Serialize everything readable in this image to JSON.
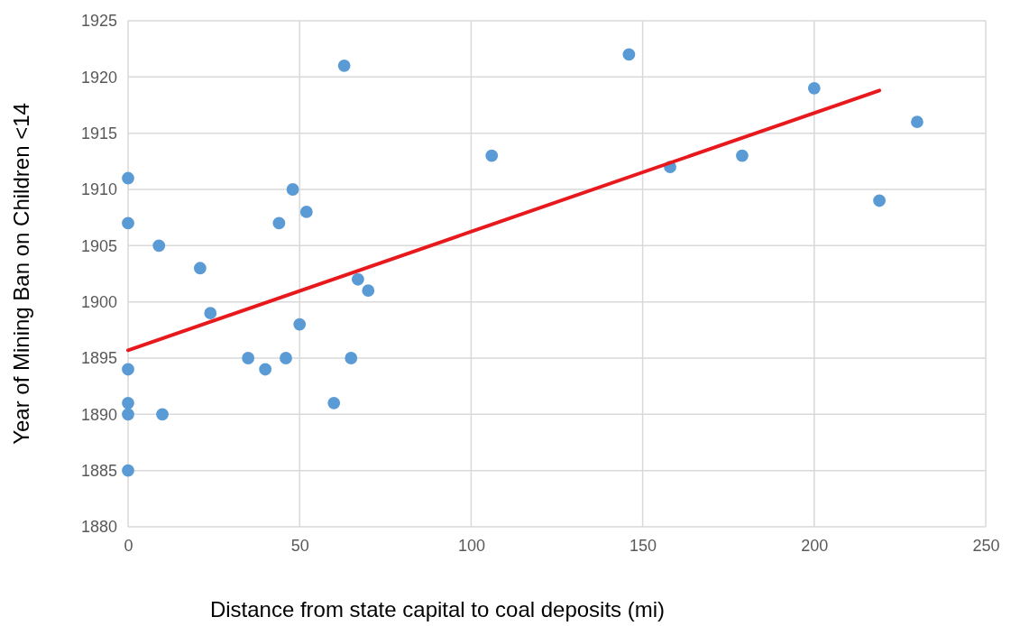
{
  "chart_data": {
    "type": "scatter",
    "xlabel": "Distance from state capital to coal deposits (mi)",
    "ylabel": "Year of Mining Ban on Children <14",
    "xlim": [
      0,
      250
    ],
    "xticks": [
      0,
      50,
      100,
      150,
      200,
      250
    ],
    "ylim": [
      1880,
      1925
    ],
    "yticks": [
      1880,
      1885,
      1890,
      1895,
      1900,
      1905,
      1910,
      1915,
      1920,
      1925
    ],
    "grid": true,
    "marker": "circle",
    "series": [
      {
        "color": "#5b9bd5",
        "x": [
          0,
          0,
          0,
          0,
          0,
          0,
          9,
          10,
          21,
          24,
          35,
          40,
          44,
          46,
          48,
          50,
          52,
          60,
          63,
          65,
          67,
          70,
          106,
          146,
          158,
          179,
          200,
          219,
          230
        ],
        "values": [
          1911,
          1907,
          1894,
          1891,
          1890,
          1885,
          1905,
          1890,
          1903,
          1899,
          1895,
          1894,
          1907,
          1895,
          1910,
          1898,
          1908,
          1891,
          1921,
          1895,
          1902,
          1901,
          1913,
          1922,
          1912,
          1913,
          1919,
          1909,
          1916
        ]
      },
      {
        "type": "line",
        "color": "#e8191c",
        "marker": "none",
        "x": [
          0,
          219
        ],
        "values": [
          1895.7,
          1918.8
        ]
      }
    ]
  }
}
